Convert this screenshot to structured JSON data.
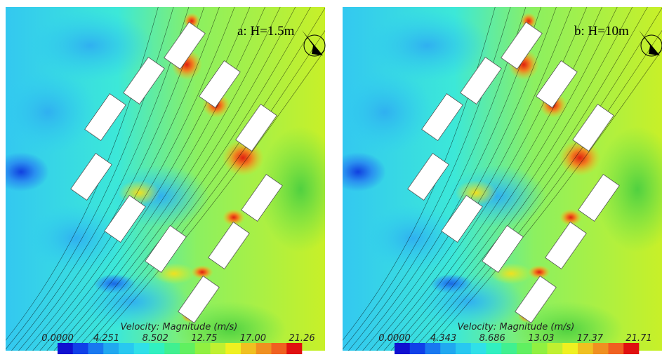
{
  "panels": [
    {
      "label": "a: H=1.5m",
      "colorbar_title": "Velocity: Magnitude (m/s)",
      "colorbar_ticks": [
        "0.0000",
        "4.251",
        "8.502",
        "12.75",
        "17.00",
        "21.26"
      ]
    },
    {
      "label": "b: H=10m",
      "colorbar_title": "Velocity: Magnitude (m/s)",
      "colorbar_ticks": [
        "0.0000",
        "4.343",
        "8.686",
        "13.03",
        "17.37",
        "21.71"
      ]
    }
  ]
}
